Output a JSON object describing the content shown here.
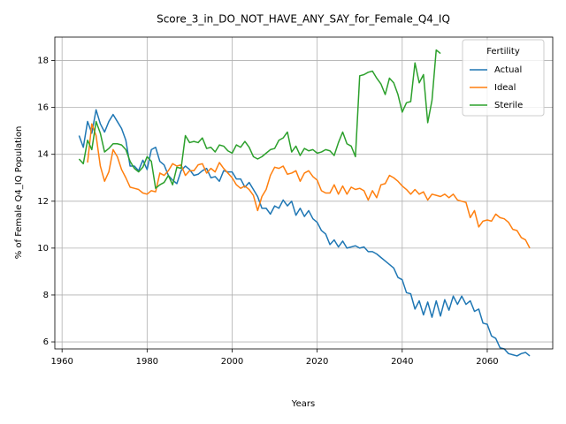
{
  "chart_data": {
    "type": "line",
    "title": "Score_3_in_DO_NOT_HAVE_ANY_SAY_for_Female_Q4_IQ",
    "x_label": "Years",
    "y_label": "% of Female Q4_IQ Population",
    "x": [
      1964,
      1965,
      1966,
      1967,
      1968,
      1969,
      1970,
      1971,
      1972,
      1973,
      1974,
      1975,
      1976,
      1977,
      1978,
      1979,
      1980,
      1981,
      1982,
      1983,
      1984,
      1985,
      1986,
      1987,
      1988,
      1989,
      1990,
      1991,
      1992,
      1993,
      1994,
      1995,
      1996,
      1997,
      1998,
      1999,
      2000,
      2001,
      2002,
      2003,
      2004,
      2005,
      2006,
      2007,
      2008,
      2009,
      2010,
      2011,
      2012,
      2013,
      2014,
      2015,
      2016,
      2017,
      2018,
      2019,
      2020,
      2021,
      2022,
      2023,
      2024,
      2025,
      2026,
      2027,
      2028,
      2029,
      2030,
      2031,
      2032,
      2033,
      2034,
      2035,
      2036,
      2037,
      2038,
      2039,
      2040,
      2041,
      2042,
      2043,
      2044,
      2045,
      2046,
      2047,
      2048,
      2049,
      2050,
      2051,
      2052,
      2053,
      2054,
      2055,
      2056,
      2057,
      2058,
      2059,
      2060,
      2061,
      2062,
      2063,
      2064,
      2065,
      2066,
      2067,
      2068,
      2069,
      2070
    ],
    "series": [
      {
        "name": "Actual",
        "color": "#1f77b4",
        "values": [
          14.8,
          14.3,
          15.4,
          14.9,
          15.9,
          15.3,
          14.95,
          15.4,
          15.7,
          15.4,
          15.1,
          14.6,
          13.5,
          13.5,
          13.3,
          13.75,
          13.35,
          14.2,
          14.3,
          13.7,
          13.55,
          13.1,
          12.9,
          12.75,
          13.3,
          13.5,
          13.35,
          13.1,
          13.15,
          13.3,
          13.4,
          13.0,
          13.05,
          12.85,
          13.3,
          13.25,
          13.25,
          12.95,
          12.95,
          12.6,
          12.8,
          12.5,
          12.2,
          11.7,
          11.7,
          11.45,
          11.8,
          11.7,
          12.05,
          11.8,
          12.0,
          11.4,
          11.7,
          11.35,
          11.6,
          11.25,
          11.1,
          10.75,
          10.6,
          10.15,
          10.35,
          10.05,
          10.3,
          10.0,
          10.05,
          10.1,
          10.0,
          10.05,
          9.85,
          9.85,
          9.75,
          9.6,
          9.45,
          9.3,
          9.15,
          8.75,
          8.65,
          8.1,
          8.05,
          7.4,
          7.75,
          7.15,
          7.7,
          7.05,
          7.75,
          7.1,
          7.8,
          7.35,
          7.95,
          7.6,
          7.95,
          7.6,
          7.75,
          7.3,
          7.4,
          6.8,
          6.75,
          6.25,
          6.15,
          5.75,
          5.7,
          5.5,
          5.45,
          5.4,
          5.5,
          5.55,
          5.4
        ]
      },
      {
        "name": "Ideal",
        "color": "#ff7f0e",
        "values": [
          null,
          null,
          13.65,
          15.3,
          14.8,
          13.5,
          12.85,
          13.25,
          14.2,
          13.9,
          13.35,
          13.0,
          12.6,
          12.55,
          12.5,
          12.35,
          12.3,
          12.45,
          12.4,
          13.2,
          13.1,
          13.3,
          13.6,
          13.5,
          13.55,
          13.1,
          13.3,
          13.3,
          13.55,
          13.6,
          13.2,
          13.4,
          13.25,
          13.65,
          13.4,
          13.2,
          13.0,
          12.7,
          12.55,
          12.65,
          12.5,
          12.25,
          11.6,
          12.2,
          12.5,
          13.1,
          13.45,
          13.4,
          13.5,
          13.15,
          13.2,
          13.3,
          12.85,
          13.2,
          13.3,
          13.05,
          12.9,
          12.45,
          12.35,
          12.35,
          12.7,
          12.3,
          12.65,
          12.3,
          12.6,
          12.5,
          12.55,
          12.45,
          12.05,
          12.45,
          12.15,
          12.7,
          12.75,
          13.1,
          13.0,
          12.85,
          12.65,
          12.5,
          12.3,
          12.5,
          12.3,
          12.4,
          12.05,
          12.3,
          12.25,
          12.2,
          12.3,
          12.15,
          12.3,
          12.05,
          12.0,
          11.95,
          11.3,
          11.6,
          10.9,
          11.15,
          11.2,
          11.15,
          11.45,
          11.3,
          11.25,
          11.1,
          10.8,
          10.75,
          10.45,
          10.35,
          10.0
        ]
      },
      {
        "name": "Sterile",
        "color": "#2ca02c",
        "values": [
          13.8,
          13.6,
          14.6,
          14.2,
          15.4,
          14.9,
          14.1,
          14.25,
          14.45,
          14.45,
          14.4,
          14.2,
          13.7,
          13.4,
          13.25,
          13.45,
          13.9,
          13.7,
          12.55,
          12.7,
          12.8,
          13.1,
          12.7,
          13.45,
          13.4,
          14.8,
          14.5,
          14.55,
          14.5,
          14.7,
          14.25,
          14.3,
          14.1,
          14.4,
          14.35,
          14.15,
          14.05,
          14.4,
          14.3,
          14.55,
          14.3,
          13.9,
          13.8,
          13.9,
          14.05,
          14.2,
          14.25,
          14.6,
          14.7,
          14.95,
          14.1,
          14.35,
          13.95,
          14.25,
          14.15,
          14.2,
          14.05,
          14.1,
          14.2,
          14.15,
          13.95,
          14.5,
          14.95,
          14.45,
          14.35,
          13.9,
          17.35,
          17.4,
          17.5,
          17.55,
          17.25,
          17.0,
          16.55,
          17.25,
          17.05,
          16.55,
          15.8,
          16.2,
          16.25,
          17.9,
          17.05,
          17.4,
          15.35,
          16.3,
          18.45,
          18.3,
          null,
          null,
          null,
          null,
          null,
          null,
          null,
          null,
          null,
          null,
          null,
          null,
          null,
          null,
          null,
          null,
          null,
          null,
          null,
          null,
          null
        ]
      }
    ],
    "xlim": [
      1958.3,
      2075.4
    ],
    "ylim": [
      5.7,
      19.0
    ],
    "xticks": [
      1960,
      1980,
      2000,
      2020,
      2040,
      2060
    ],
    "yticks": [
      6,
      8,
      10,
      12,
      14,
      16,
      18
    ],
    "grid": true,
    "legend_title": "Fertility",
    "legend": "upper right"
  }
}
